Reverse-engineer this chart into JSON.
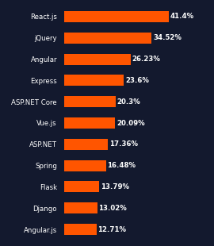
{
  "frameworks": [
    "React.js",
    "jQuery",
    "Angular",
    "Express",
    "ASP.NET Core",
    "Vue.js",
    "ASP.NET",
    "Spring",
    "Flask",
    "Django",
    "Angular.js"
  ],
  "values": [
    41.4,
    34.52,
    26.23,
    23.6,
    20.3,
    20.09,
    17.36,
    16.48,
    13.79,
    13.02,
    12.71
  ],
  "labels": [
    "41.4%",
    "34.52%",
    "26.23%",
    "23.6%",
    "20.3%",
    "20.09%",
    "17.36%",
    "16.48%",
    "13.79%",
    "13.02%",
    "12.71%"
  ],
  "bar_color": "#FF5500",
  "background_color": "#13192e",
  "text_color": "#ffffff",
  "bar_height": 0.52,
  "xlim_max": 55,
  "label_fontsize": 6.2,
  "value_fontsize": 6.2
}
